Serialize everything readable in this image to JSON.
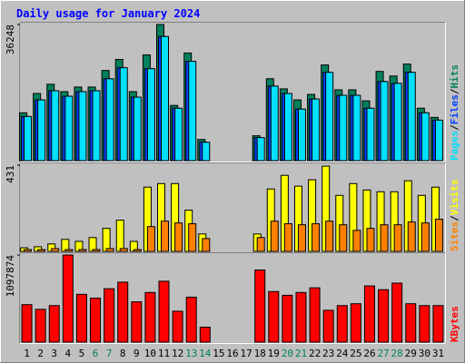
{
  "title": "Daily usage for January 2024",
  "legend_separator": "/",
  "chart_data": [
    {
      "type": "bar",
      "ylim": [
        0,
        36248
      ],
      "yticks": [
        36248
      ],
      "series": [
        {
          "name": "Hits",
          "color": "#00805c",
          "values": [
            12736,
            17879,
            20328,
            18369,
            19594,
            19594,
            24002,
            26941,
            18369,
            28165,
            36248,
            14695,
            28655,
            5633,
            null,
            null,
            null,
            6613,
            21798,
            19104,
            16164,
            17634,
            25471,
            18859,
            18859,
            15920,
            23757,
            22532,
            25716,
            13960,
            11511
          ]
        },
        {
          "name": "Files",
          "color": "#0040ff",
          "values": [
            11756,
            16164,
            18614,
            17144,
            18369,
            18614,
            21798,
            24737,
            16899,
            24492,
            33064,
            13960,
            26451,
            4898,
            null,
            null,
            null,
            6123,
            19839,
            17879,
            13715,
            16409,
            23512,
            17389,
            17389,
            13960,
            21063,
            20573,
            23512,
            12736,
            10776
          ]
        },
        {
          "name": "Pages",
          "color": "#00e0ff",
          "values": [
            11756,
            16164,
            18614,
            17144,
            18369,
            18614,
            21798,
            24737,
            16899,
            24492,
            33064,
            13960,
            26451,
            4898,
            null,
            null,
            null,
            6123,
            19839,
            17879,
            13715,
            16409,
            23512,
            17389,
            17389,
            13960,
            21063,
            20573,
            23512,
            12736,
            10776
          ]
        }
      ]
    },
    {
      "type": "bar",
      "ylim": [
        0,
        431
      ],
      "yticks": [
        431
      ],
      "series": [
        {
          "name": "Visits",
          "color": "#ffff00",
          "values": [
            18,
            23,
            37,
            60,
            50,
            69,
            115,
            156,
            50,
            321,
            339,
            339,
            206,
            87,
            null,
            null,
            null,
            87,
            312,
            380,
            326,
            358,
            426,
            280,
            339,
            307,
            298,
            298,
            353,
            280,
            321
          ]
        },
        {
          "name": "Sites",
          "color": "#ff8000",
          "values": [
            9,
            9,
            14,
            9,
            9,
            9,
            14,
            14,
            9,
            124,
            151,
            142,
            138,
            64,
            null,
            null,
            null,
            69,
            151,
            138,
            133,
            138,
            151,
            133,
            105,
            115,
            133,
            133,
            147,
            142,
            161
          ]
        }
      ]
    },
    {
      "type": "bar",
      "ylim": [
        0,
        1097874
      ],
      "yticks": [
        1097874
      ],
      "categories": [
        "1",
        "2",
        "3",
        "4",
        "5",
        "6",
        "7",
        "8",
        "9",
        "10",
        "11",
        "12",
        "13",
        "14",
        "15",
        "16",
        "17",
        "18",
        "19",
        "20",
        "21",
        "22",
        "23",
        "24",
        "25",
        "26",
        "27",
        "28",
        "29",
        "30",
        "31"
      ],
      "category_colors": [
        "#000000",
        "#000000",
        "#000000",
        "#000000",
        "#000000",
        "#00805c",
        "#00805c",
        "#000000",
        "#000000",
        "#000000",
        "#000000",
        "#000000",
        "#00805c",
        "#00805c",
        "#000000",
        "#000000",
        "#000000",
        "#000000",
        "#000000",
        "#00805c",
        "#00805c",
        "#000000",
        "#000000",
        "#000000",
        "#000000",
        "#000000",
        "#00805c",
        "#00805c",
        "#000000",
        "#000000",
        "#000000"
      ],
      "series": [
        {
          "name": "KBytes",
          "color": "#ff0000",
          "values": [
            472204,
            413177,
            460398,
            1097874,
            602060,
            554839,
            672891,
            755527,
            507618,
            625669,
            767332,
            389566,
            566645,
            188881,
            null,
            null,
            null,
            908997,
            637475,
            590254,
            625669,
            684696,
            401372,
            460398,
            484009,
            708306,
            661085,
            743722,
            484009,
            460398,
            460398
          ]
        }
      ]
    }
  ]
}
